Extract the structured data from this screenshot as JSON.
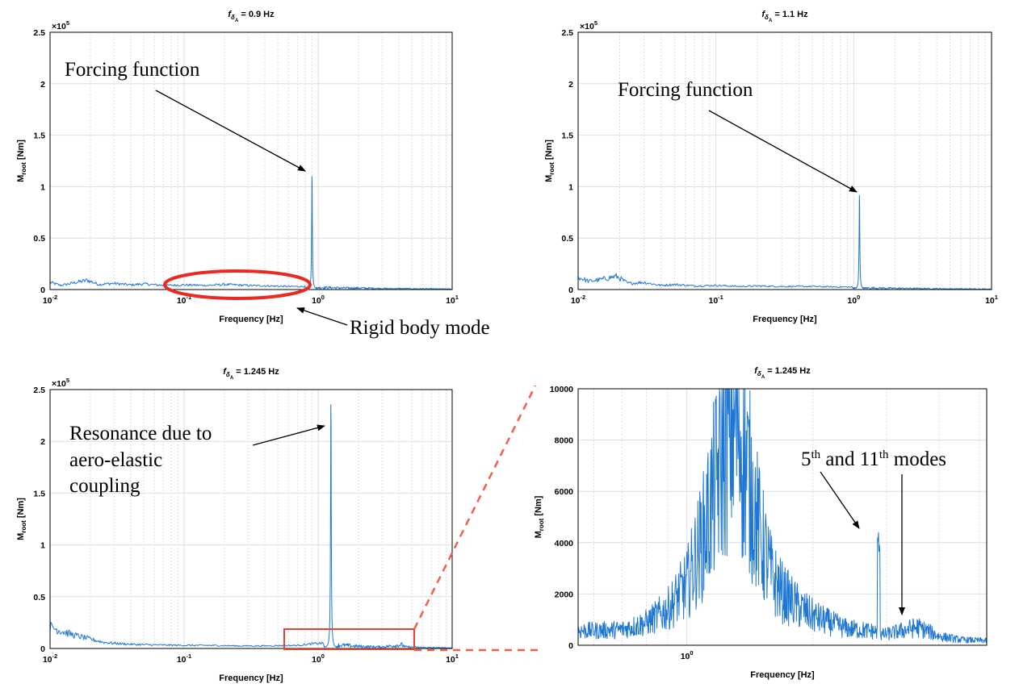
{
  "colors": {
    "line": "#1f77d4",
    "grid": "#dedede",
    "grid_minor": "#c8c8c8",
    "red_annot": "#e8432f",
    "red_dash": "#f0604a",
    "red_ellipse": "#e82a20"
  },
  "chart_data": [
    {
      "id": "p1",
      "type": "line",
      "title_main": "f",
      "title_sub": "δ",
      "title_subsub": "A",
      "title_value": " = 0.9 Hz",
      "xlabel": "Frequency [Hz]",
      "ylabel_main": "M",
      "ylabel_sub": "root",
      "ylabel_unit": " [Nm]",
      "xscale": "log",
      "xlim": [
        0.01,
        10
      ],
      "ylim": [
        0,
        250000
      ],
      "y_exponent_label": "×10",
      "y_exponent_power": "5",
      "x_ticks": [
        0.01,
        0.1,
        1,
        10
      ],
      "x_tick_labels": [
        "10",
        "10",
        "10",
        "10"
      ],
      "x_tick_powers": [
        "-2",
        "-1",
        "0",
        "1"
      ],
      "y_ticks": [
        0,
        50000,
        100000,
        150000,
        200000,
        250000
      ],
      "y_tick_labels": [
        "0",
        "0.5",
        "1",
        "1.5",
        "2",
        "2.5"
      ],
      "baseline_points": [
        [
          0.01,
          7000
        ],
        [
          0.012,
          4000
        ],
        [
          0.015,
          6500
        ],
        [
          0.019,
          9000
        ],
        [
          0.023,
          5000
        ],
        [
          0.03,
          6000
        ],
        [
          0.04,
          4500
        ],
        [
          0.05,
          5500
        ],
        [
          0.07,
          4000
        ],
        [
          0.1,
          4500
        ],
        [
          0.15,
          4000
        ],
        [
          0.2,
          5000
        ],
        [
          0.3,
          4000
        ],
        [
          0.45,
          3500
        ],
        [
          0.6,
          3000
        ],
        [
          0.75,
          3000
        ]
      ],
      "spike": {
        "center": 0.9,
        "peak": 113000,
        "width_decades": 0.012
      },
      "tail_points": [
        [
          1.1,
          2000
        ],
        [
          1.5,
          1500
        ],
        [
          2,
          1500
        ],
        [
          3,
          1000
        ],
        [
          5,
          800
        ],
        [
          10,
          500
        ]
      ],
      "annotations": [
        {
          "text": "Forcing function"
        },
        {
          "text": "Rigid body mode"
        }
      ]
    },
    {
      "id": "p2",
      "type": "line",
      "title_main": "f",
      "title_sub": "δ",
      "title_subsub": "A",
      "title_value": " = 1.1 Hz",
      "xlabel": "Frequency [Hz]",
      "ylabel_main": "M",
      "ylabel_sub": "root",
      "ylabel_unit": " [Nm]",
      "xscale": "log",
      "xlim": [
        0.01,
        10
      ],
      "ylim": [
        0,
        250000
      ],
      "y_exponent_label": "×10",
      "y_exponent_power": "5",
      "x_ticks": [
        0.01,
        0.1,
        1,
        10
      ],
      "x_tick_labels": [
        "10",
        "10",
        "10",
        "10"
      ],
      "x_tick_powers": [
        "-2",
        "-1",
        "0",
        "1"
      ],
      "y_ticks": [
        0,
        50000,
        100000,
        150000,
        200000,
        250000
      ],
      "y_tick_labels": [
        "0",
        "0.5",
        "1",
        "1.5",
        "2",
        "2.5"
      ],
      "baseline_points": [
        [
          0.01,
          12000
        ],
        [
          0.012,
          8000
        ],
        [
          0.015,
          10000
        ],
        [
          0.019,
          13000
        ],
        [
          0.023,
          6000
        ],
        [
          0.03,
          7000
        ],
        [
          0.04,
          4000
        ],
        [
          0.05,
          5000
        ],
        [
          0.07,
          3500
        ],
        [
          0.1,
          4000
        ],
        [
          0.15,
          3000
        ],
        [
          0.2,
          3500
        ],
        [
          0.3,
          3000
        ],
        [
          0.5,
          3000
        ],
        [
          0.8,
          2500
        ]
      ],
      "spike": {
        "center": 1.1,
        "peak": 94000,
        "width_decades": 0.012
      },
      "tail_points": [
        [
          1.35,
          1500
        ],
        [
          2,
          1200
        ],
        [
          3,
          1000
        ],
        [
          5,
          700
        ],
        [
          10,
          500
        ]
      ],
      "annotations": [
        {
          "text": "Forcing function"
        }
      ]
    },
    {
      "id": "p3",
      "type": "line",
      "title_main": "f",
      "title_sub": "δ",
      "title_subsub": "A",
      "title_value": " = 1.245 Hz",
      "xlabel": "Frequency [Hz]",
      "ylabel_main": "M",
      "ylabel_sub": "root",
      "ylabel_unit": " [Nm]",
      "xscale": "log",
      "xlim": [
        0.01,
        10
      ],
      "ylim": [
        0,
        250000
      ],
      "y_exponent_label": "×10",
      "y_exponent_power": "5",
      "x_ticks": [
        0.01,
        0.1,
        1,
        10
      ],
      "x_tick_labels": [
        "10",
        "10",
        "10",
        "10"
      ],
      "x_tick_powers": [
        "-2",
        "-1",
        "0",
        "1"
      ],
      "y_ticks": [
        0,
        50000,
        100000,
        150000,
        200000,
        250000
      ],
      "y_tick_labels": [
        "0",
        "0.5",
        "1",
        "1.5",
        "2",
        "2.5"
      ],
      "baseline_points": [
        [
          0.01,
          21000
        ],
        [
          0.012,
          17000
        ],
        [
          0.015,
          13000
        ],
        [
          0.02,
          9000
        ],
        [
          0.025,
          6000
        ],
        [
          0.03,
          5000
        ],
        [
          0.04,
          4000
        ],
        [
          0.06,
          3500
        ],
        [
          0.1,
          3000
        ],
        [
          0.15,
          3000
        ],
        [
          0.25,
          2500
        ],
        [
          0.4,
          2500
        ],
        [
          0.7,
          3000
        ],
        [
          1.0,
          5000
        ]
      ],
      "spike": {
        "center": 1.245,
        "peak": 242000,
        "width_decades": 0.012
      },
      "tail_points": [
        [
          1.6,
          3000
        ],
        [
          2,
          2000
        ],
        [
          3,
          1500
        ],
        [
          4.2,
          3500
        ],
        [
          4.5,
          1500
        ],
        [
          6,
          1000
        ],
        [
          10,
          500
        ]
      ],
      "annotations": [
        {
          "text": "Resonance due to"
        },
        {
          "text": "aero-elastic"
        },
        {
          "text": "coupling"
        }
      ]
    },
    {
      "id": "p4",
      "type": "line",
      "title_main": "f",
      "title_sub": "δ",
      "title_subsub": "A",
      "title_value": " = 1.245 Hz",
      "xlabel": "Frequency [Hz]",
      "ylabel_main": "M",
      "ylabel_sub": "root",
      "ylabel_unit": " [Nm]",
      "xscale": "log",
      "xlim": [
        0.55,
        5.2
      ],
      "ylim": [
        0,
        10000
      ],
      "x_ticks": [
        1
      ],
      "x_tick_labels": [
        "10"
      ],
      "x_tick_powers": [
        "0"
      ],
      "y_ticks": [
        0,
        2000,
        4000,
        6000,
        8000,
        10000
      ],
      "y_tick_labels": [
        "0",
        "2000",
        "4000",
        "6000",
        "8000",
        "10000"
      ],
      "envelope_points": [
        [
          0.55,
          650
        ],
        [
          0.6,
          650
        ],
        [
          0.7,
          700
        ],
        [
          0.8,
          1000
        ],
        [
          0.9,
          1600
        ],
        [
          1.0,
          2700
        ],
        [
          1.1,
          5000
        ],
        [
          1.2,
          8000
        ],
        [
          1.26,
          10000
        ],
        [
          1.32,
          10000
        ],
        [
          1.42,
          7000
        ],
        [
          1.5,
          4800
        ],
        [
          1.6,
          3000
        ],
        [
          1.7,
          2300
        ],
        [
          1.85,
          1700
        ],
        [
          2.0,
          1300
        ],
        [
          2.2,
          1000
        ],
        [
          2.4,
          750
        ],
        [
          2.55,
          700
        ],
        [
          2.7,
          650
        ],
        [
          2.86,
          600
        ],
        [
          2.9,
          450
        ],
        [
          3.1,
          550
        ],
        [
          3.35,
          700
        ],
        [
          3.55,
          800
        ],
        [
          3.75,
          650
        ],
        [
          4.0,
          400
        ],
        [
          4.5,
          250
        ],
        [
          5.2,
          200
        ]
      ],
      "small_spike": {
        "center": 2.87,
        "peak": 4500
      },
      "annotations": [
        {
          "text": "5"
        },
        {
          "text": "th"
        },
        {
          "text": " and 11"
        },
        {
          "text": "th"
        },
        {
          "text": " modes"
        }
      ]
    }
  ]
}
